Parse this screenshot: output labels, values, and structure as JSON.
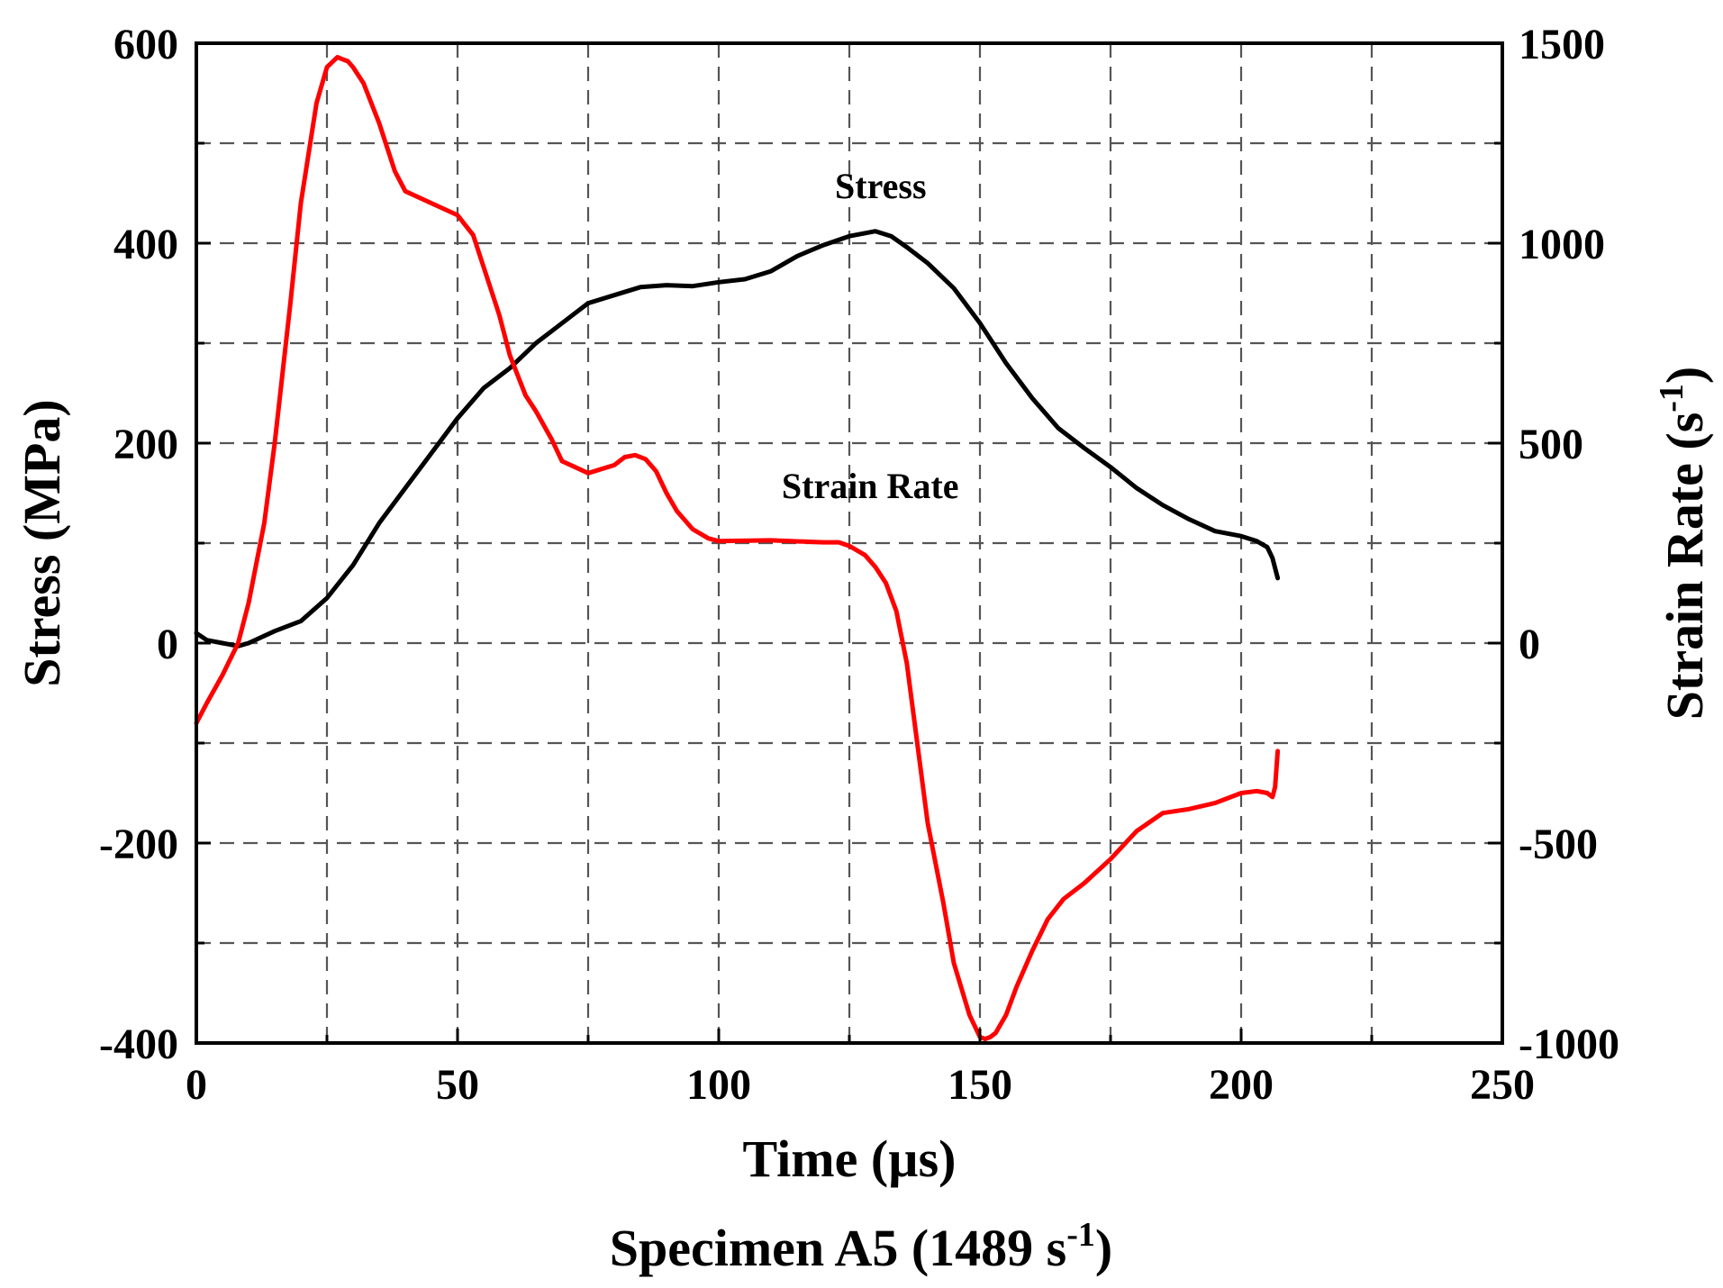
{
  "chart_data": {
    "type": "line",
    "caption": "Specimen A5 (1489 s",
    "caption_sup": "-1",
    "caption_end": ")",
    "xlabel": "Time (µs)",
    "ylabel": "Stress (MPa)",
    "y2label": "Strain Rate (s",
    "y2label_sup": "-1",
    "y2label_end": ")",
    "xlim": [
      0,
      250
    ],
    "ylim": [
      -400,
      600
    ],
    "y2lim": [
      -1000,
      1500
    ],
    "x_ticks": [
      0,
      50,
      100,
      150,
      200,
      250
    ],
    "x_tick_labels": [
      "0",
      "50",
      "100",
      "150",
      "200",
      "250"
    ],
    "y_ticks": [
      -400,
      -200,
      0,
      200,
      400,
      600
    ],
    "y_tick_labels": [
      "-400",
      "-200",
      "0",
      "200",
      "400",
      "600"
    ],
    "y2_ticks": [
      -1000,
      -500,
      0,
      500,
      1000,
      1500
    ],
    "y2_tick_labels": [
      "-1000",
      "-500",
      "0",
      "500",
      "1000",
      "1500"
    ],
    "grid": true,
    "colors": {
      "stress": "#000000",
      "strain_rate": "#ff0000",
      "grid": "#555555"
    },
    "annotations": [
      {
        "text": "Stress",
        "series": "stress",
        "x": 131,
        "y": 445
      },
      {
        "text": "Strain Rate",
        "series": "strain_rate",
        "x": 129,
        "y": 145
      }
    ],
    "series": [
      {
        "name": "Stress",
        "key": "stress",
        "axis": "left",
        "x": [
          0,
          2,
          5,
          8,
          10,
          15,
          20,
          25,
          30,
          35,
          40,
          45,
          50,
          55,
          60,
          65,
          70,
          75,
          80,
          85,
          90,
          95,
          100,
          105,
          110,
          115,
          120,
          125,
          130,
          133,
          136,
          140,
          145,
          150,
          155,
          160,
          165,
          170,
          175,
          180,
          185,
          190,
          195,
          200,
          203,
          205,
          206,
          207
        ],
        "values": [
          10,
          3,
          0,
          -3,
          0,
          12,
          22,
          45,
          78,
          120,
          155,
          190,
          225,
          255,
          275,
          300,
          320,
          340,
          348,
          356,
          358,
          357,
          361,
          364,
          372,
          387,
          398,
          407,
          412,
          407,
          396,
          380,
          355,
          320,
          280,
          245,
          215,
          195,
          176,
          155,
          138,
          124,
          112,
          107,
          102,
          96,
          85,
          65
        ]
      },
      {
        "name": "Strain Rate",
        "key": "strain_rate",
        "axis": "right",
        "x": [
          0,
          2,
          5,
          8,
          10,
          13,
          15,
          18,
          20,
          23,
          25,
          27,
          28,
          29,
          30,
          32,
          35,
          38,
          40,
          45,
          50,
          53,
          55,
          58,
          60,
          63,
          65,
          68,
          70,
          75,
          80,
          82,
          84,
          86,
          88,
          90,
          92,
          95,
          98,
          100,
          110,
          120,
          123,
          125,
          128,
          130,
          132,
          134,
          136,
          138,
          140,
          143,
          145,
          148,
          150,
          151,
          152,
          153,
          155,
          157,
          160,
          163,
          166,
          170,
          175,
          180,
          185,
          190,
          195,
          200,
          203,
          205,
          206,
          206.5,
          207
        ],
        "values": [
          -200,
          -150,
          -80,
          0,
          100,
          300,
          500,
          850,
          1100,
          1350,
          1440,
          1465,
          1460,
          1455,
          1440,
          1400,
          1300,
          1180,
          1130,
          1100,
          1070,
          1020,
          940,
          820,
          720,
          620,
          580,
          510,
          455,
          425,
          445,
          465,
          470,
          460,
          430,
          375,
          330,
          285,
          262,
          255,
          257,
          252,
          252,
          243,
          220,
          190,
          150,
          80,
          -50,
          -250,
          -450,
          -650,
          -800,
          -930,
          -985,
          -990,
          -985,
          -975,
          -930,
          -860,
          -770,
          -690,
          -640,
          -600,
          -540,
          -470,
          -425,
          -415,
          -400,
          -375,
          -370,
          -375,
          -385,
          -360,
          -270
        ]
      }
    ]
  }
}
